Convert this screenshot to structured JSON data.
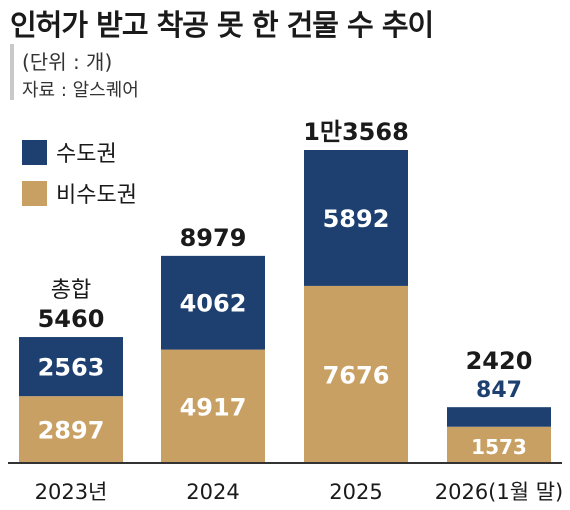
{
  "header": {
    "title": "인허가 받고 착공 못 한 건물 수 추이",
    "unit": "(단위 : 개)",
    "source": "자료 : 알스퀘어"
  },
  "chart_data": {
    "type": "bar",
    "stacked": true,
    "title": "인허가 받고 착공 못 한 건물 수 추이",
    "unit": "(단위 : 개)",
    "categories": [
      "2023년",
      "2024",
      "2025",
      "2026(1월 말)"
    ],
    "series": [
      {
        "name": "비수도권",
        "values": [
          2897,
          4917,
          7676,
          1573
        ],
        "color": "#c9a064"
      },
      {
        "name": "수도권",
        "values": [
          2563,
          4062,
          5892,
          847
        ],
        "color": "#1d4070"
      }
    ],
    "total_labels": [
      "5460",
      "8979",
      "1만3568",
      "2420"
    ],
    "total_prefix": "총합",
    "ylim": [
      0,
      13568
    ],
    "grid": false,
    "legend": "top-left"
  },
  "colors": {
    "capital": "#1d4070",
    "non_capital": "#c9a064",
    "axis": "#333333"
  }
}
